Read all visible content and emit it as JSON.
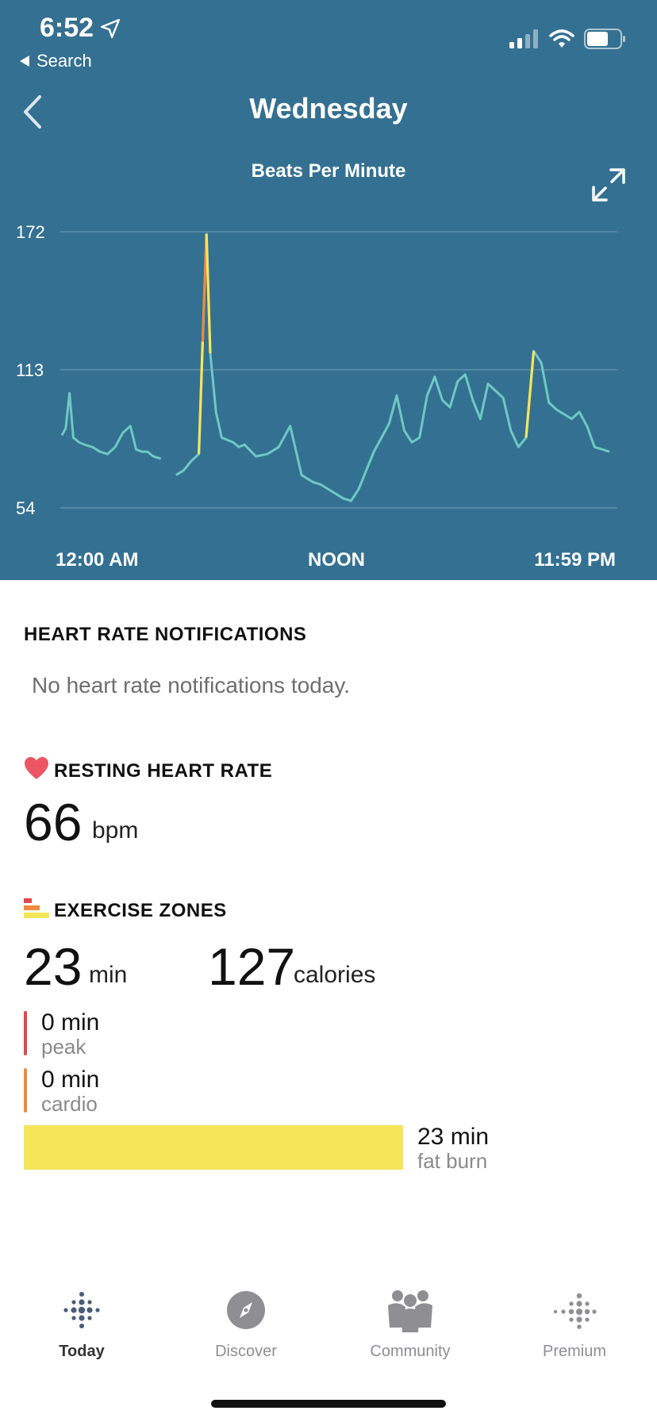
{
  "status_bar": {
    "time": "6:52",
    "back_label": "Search"
  },
  "header": {
    "title": "Wednesday",
    "chart_title": "Beats Per Minute"
  },
  "chart_data": {
    "type": "line",
    "title": "Beats Per Minute",
    "xlabel": "",
    "ylabel": "",
    "x_tick_labels": [
      "12:00 AM",
      "NOON",
      "11:59 PM"
    ],
    "y_ticks": [
      54,
      113,
      172
    ],
    "ylim": [
      54,
      172
    ],
    "grid": true,
    "series": [
      {
        "x": [
          "00:00",
          "00:10",
          "00:20",
          "00:30",
          "00:45",
          "01:00",
          "01:20",
          "01:40",
          "02:00",
          "02:20",
          "02:40",
          "03:00",
          "03:15",
          "03:30",
          "03:45",
          "04:00",
          "04:20",
          "04:40",
          "05:00",
          "05:20",
          "05:40",
          "06:00",
          "06:10",
          "06:20",
          "06:30",
          "06:45",
          "07:00",
          "07:15",
          "07:30",
          "07:45",
          "08:00",
          "08:30",
          "09:00",
          "09:30",
          "10:00",
          "10:30",
          "11:00",
          "11:20",
          "11:40",
          "12:00",
          "12:20",
          "12:40",
          "13:00",
          "13:20",
          "13:40",
          "14:00",
          "14:20",
          "14:40",
          "15:00",
          "15:20",
          "15:40",
          "16:00",
          "16:20",
          "16:40",
          "17:00",
          "17:20",
          "17:40",
          "18:00",
          "18:20",
          "18:40",
          "19:00",
          "19:20",
          "19:40",
          "20:00",
          "20:20",
          "20:40",
          "21:00",
          "21:20",
          "21:40",
          "22:00",
          "22:20",
          "22:40",
          "23:00",
          "23:20",
          "23:40",
          "23:59"
        ],
        "y": [
          85,
          88,
          103,
          84,
          82,
          81,
          80,
          78,
          77,
          80,
          86,
          89,
          79,
          78,
          78,
          76,
          75,
          null,
          68,
          70,
          74,
          77,
          125,
          171,
          120,
          95,
          84,
          83,
          82,
          80,
          81,
          76,
          77,
          80,
          89,
          68,
          65,
          64,
          62,
          60,
          58,
          57,
          62,
          70,
          78,
          84,
          90,
          102,
          87,
          82,
          84,
          102,
          110,
          100,
          97,
          108,
          111,
          100,
          92,
          107,
          104,
          101,
          87,
          80,
          84,
          121,
          116,
          99,
          96,
          94,
          92,
          95,
          89,
          80,
          79,
          78
        ]
      }
    ]
  },
  "notifications": {
    "title": "HEART RATE NOTIFICATIONS",
    "text": "No heart rate notifications today."
  },
  "resting": {
    "title": "RESTING HEART RATE",
    "value": "66",
    "unit": "bpm"
  },
  "zones": {
    "title": "EXERCISE ZONES",
    "minutes": "23",
    "minutes_unit": "min",
    "calories": "127",
    "calories_unit": "calories",
    "peak": {
      "value": "0 min",
      "label": "peak",
      "color": "#e0474c"
    },
    "cardio": {
      "value": "0 min",
      "label": "cardio",
      "color": "#f08a3c"
    },
    "fat_burn": {
      "value": "23 min",
      "label": "fat burn",
      "color": "#f5e558"
    }
  },
  "tabs": [
    {
      "label": "Today",
      "icon": "fitbit-dots-icon",
      "active": true
    },
    {
      "label": "Discover",
      "icon": "compass-icon",
      "active": false
    },
    {
      "label": "Community",
      "icon": "community-icon",
      "active": false
    },
    {
      "label": "Premium",
      "icon": "premium-dots-icon",
      "active": false
    }
  ],
  "colors": {
    "header_bg": "#347092",
    "line": "#6ec9c2",
    "peak_gradient_top": "#f08a3c",
    "peak_gradient_mid": "#f5e558"
  }
}
